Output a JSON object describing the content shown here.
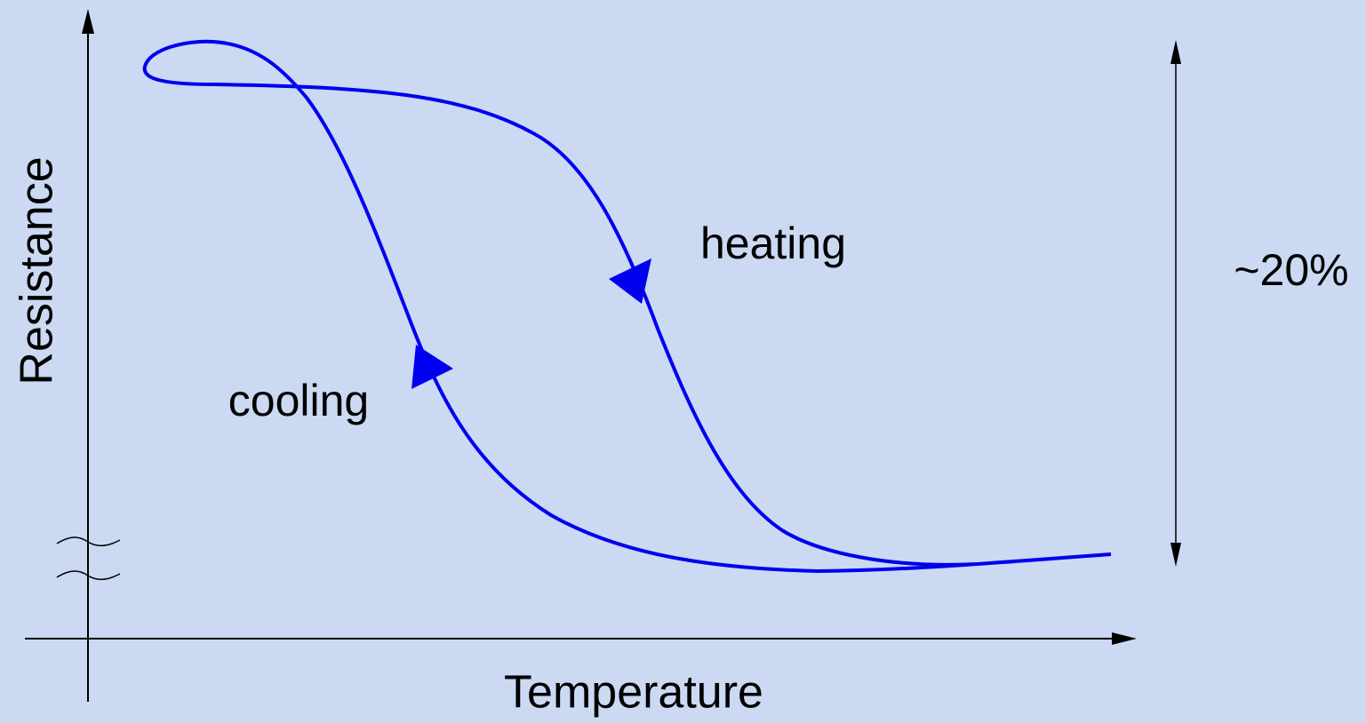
{
  "x_axis_label": "Temperature",
  "y_axis_label": "Resistance",
  "annotations": {
    "heating": "heating",
    "cooling": "cooling",
    "range": "~20%"
  }
}
